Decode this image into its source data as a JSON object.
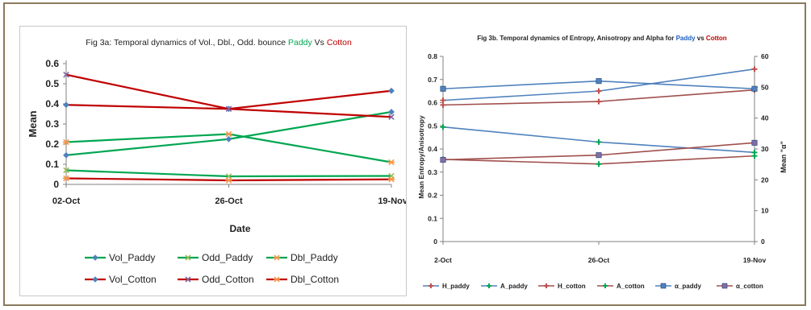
{
  "chart_data": [
    {
      "type": "line",
      "title_parts": [
        {
          "text": "Fig 3a: Temporal dynamics of Vol., Dbl., Odd. bounce ",
          "color": "#222222"
        },
        {
          "text": "Paddy",
          "color": "#00a651"
        },
        {
          "text": " Vs ",
          "color": "#222222"
        },
        {
          "text": "Cotton",
          "color": "#c00000"
        }
      ],
      "xlabel": "Date",
      "ylabel": "Mean",
      "categories": [
        "02-Oct",
        "26-Oct",
        "19-Nov"
      ],
      "ylim": [
        0,
        0.6
      ],
      "yticks": [
        "0",
        "0.1",
        "0.2",
        "0.3",
        "0.4",
        "0.5",
        "0.6"
      ],
      "ytick_values": [
        0,
        0.1,
        0.2,
        0.3,
        0.4,
        0.5,
        0.6
      ],
      "grid": false,
      "legend_position": "bottom",
      "series": [
        {
          "name": "Vol_Paddy",
          "values": [
            0.145,
            0.225,
            0.36
          ],
          "color": "#00a651",
          "marker": "diamond",
          "marker_color": "#4f81bd"
        },
        {
          "name": "Odd_Paddy",
          "values": [
            0.07,
            0.04,
            0.042
          ],
          "color": "#00a651",
          "marker": "x",
          "marker_color": "#9bbb59"
        },
        {
          "name": "Dbl_Paddy",
          "values": [
            0.21,
            0.25,
            0.11
          ],
          "color": "#00a651",
          "marker": "star",
          "marker_color": "#f79646"
        },
        {
          "name": "Vol_Cotton",
          "values": [
            0.395,
            0.375,
            0.465
          ],
          "color": "#c00000",
          "marker": "diamond",
          "marker_color": "#4f81bd"
        },
        {
          "name": "Odd_Cotton",
          "values": [
            0.545,
            0.375,
            0.335
          ],
          "color": "#c00000",
          "marker": "x",
          "marker_color": "#8064a2"
        },
        {
          "name": "Dbl_Cotton",
          "values": [
            0.03,
            0.02,
            0.025
          ],
          "color": "#c00000",
          "marker": "star",
          "marker_color": "#f79646"
        }
      ]
    },
    {
      "type": "line",
      "title_parts": [
        {
          "text": "Fig 3b. Temporal dynamics  of Entropy, Anisotropy and Alpha for ",
          "color": "#222222"
        },
        {
          "text": "Paddy",
          "color": "#1f5fbf"
        },
        {
          "text": " vs ",
          "color": "#222222"
        },
        {
          "text": "Cotton",
          "color": "#c00000"
        }
      ],
      "xlabel": "",
      "ylabel_left": "Mean Entropy/Anisotropy",
      "ylabel_right": "Mean \"α\"",
      "categories": [
        "2-Oct",
        "26-Oct",
        "19-Nov"
      ],
      "ylim_left": [
        0,
        0.8
      ],
      "yticks_left": [
        "0",
        "0.1",
        "0.2",
        "0.3",
        "0.4",
        "0.5",
        "0.6",
        "0.7",
        "0.8"
      ],
      "ytick_values_left": [
        0,
        0.1,
        0.2,
        0.3,
        0.4,
        0.5,
        0.6,
        0.7,
        0.8
      ],
      "ylim_right": [
        0,
        60
      ],
      "yticks_right": [
        "0",
        "10",
        "20",
        "30",
        "40",
        "50",
        "60"
      ],
      "ytick_values_right": [
        0,
        10,
        20,
        30,
        40,
        50,
        60
      ],
      "grid": false,
      "legend_position": "bottom",
      "series": [
        {
          "name": "H_paddy",
          "axis": "left",
          "values": [
            0.61,
            0.65,
            0.745
          ],
          "color": "#4f81bd",
          "marker": "plus",
          "marker_color": "#c0504d"
        },
        {
          "name": "A_paddy",
          "axis": "left",
          "values": [
            0.495,
            0.43,
            0.385
          ],
          "color": "#4f81bd",
          "marker": "plus",
          "marker_color": "#00a651"
        },
        {
          "name": "H_cotton",
          "axis": "left",
          "values": [
            0.59,
            0.605,
            0.655
          ],
          "color": "#a0504d",
          "marker": "plus",
          "marker_color": "#c0504d"
        },
        {
          "name": "A_cotton",
          "axis": "left",
          "values": [
            0.355,
            0.335,
            0.37
          ],
          "color": "#a0504d",
          "marker": "plus",
          "marker_color": "#00a651"
        },
        {
          "name": "α_paddy",
          "axis": "right",
          "values": [
            49.5,
            52,
            49.5
          ],
          "color": "#4f81bd",
          "marker": "square",
          "marker_color": "#4f81bd"
        },
        {
          "name": "α_cotton",
          "axis": "right",
          "values": [
            26.5,
            28,
            32
          ],
          "color": "#a0504d",
          "marker": "square",
          "marker_color": "#7f6fa8"
        }
      ]
    }
  ]
}
